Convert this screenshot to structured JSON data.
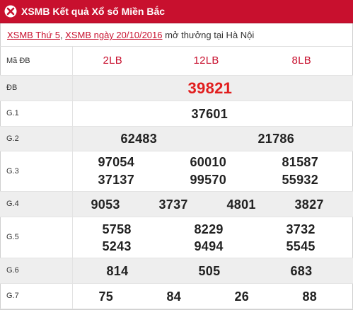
{
  "header": {
    "title": "XSMB Kết quả Xổ số Miền Bắc"
  },
  "subheader": {
    "link1": "XSMB Thứ 5",
    "sep": ", ",
    "link2": "XSMB ngày 20/10/2016",
    "suffix": " mở thưởng tại Hà Nội"
  },
  "table": {
    "code_label": "Mã ĐB",
    "codes": [
      "2LB",
      "12LB",
      "8LB"
    ],
    "rows": {
      "db": {
        "label": "ĐB",
        "numbers": [
          "39821"
        ]
      },
      "g1": {
        "label": "G.1",
        "numbers": [
          "37601"
        ]
      },
      "g2": {
        "label": "G.2",
        "numbers": [
          "62483",
          "21786"
        ]
      },
      "g3": {
        "label": "G.3",
        "numbers": [
          "97054",
          "60010",
          "81587",
          "37137",
          "99570",
          "55932"
        ]
      },
      "g4": {
        "label": "G.4",
        "numbers": [
          "9053",
          "3737",
          "4801",
          "3827"
        ]
      },
      "g5": {
        "label": "G.5",
        "numbers": [
          "5758",
          "8229",
          "3732",
          "5243",
          "9494",
          "5545"
        ]
      },
      "g6": {
        "label": "G.6",
        "numbers": [
          "814",
          "505",
          "683"
        ]
      },
      "g7": {
        "label": "G.7",
        "numbers": [
          "75",
          "84",
          "26",
          "88"
        ]
      }
    }
  },
  "colors": {
    "brand": "#c8102e",
    "special_prize": "#e11d1d",
    "row_shade": "#eeeeee"
  }
}
